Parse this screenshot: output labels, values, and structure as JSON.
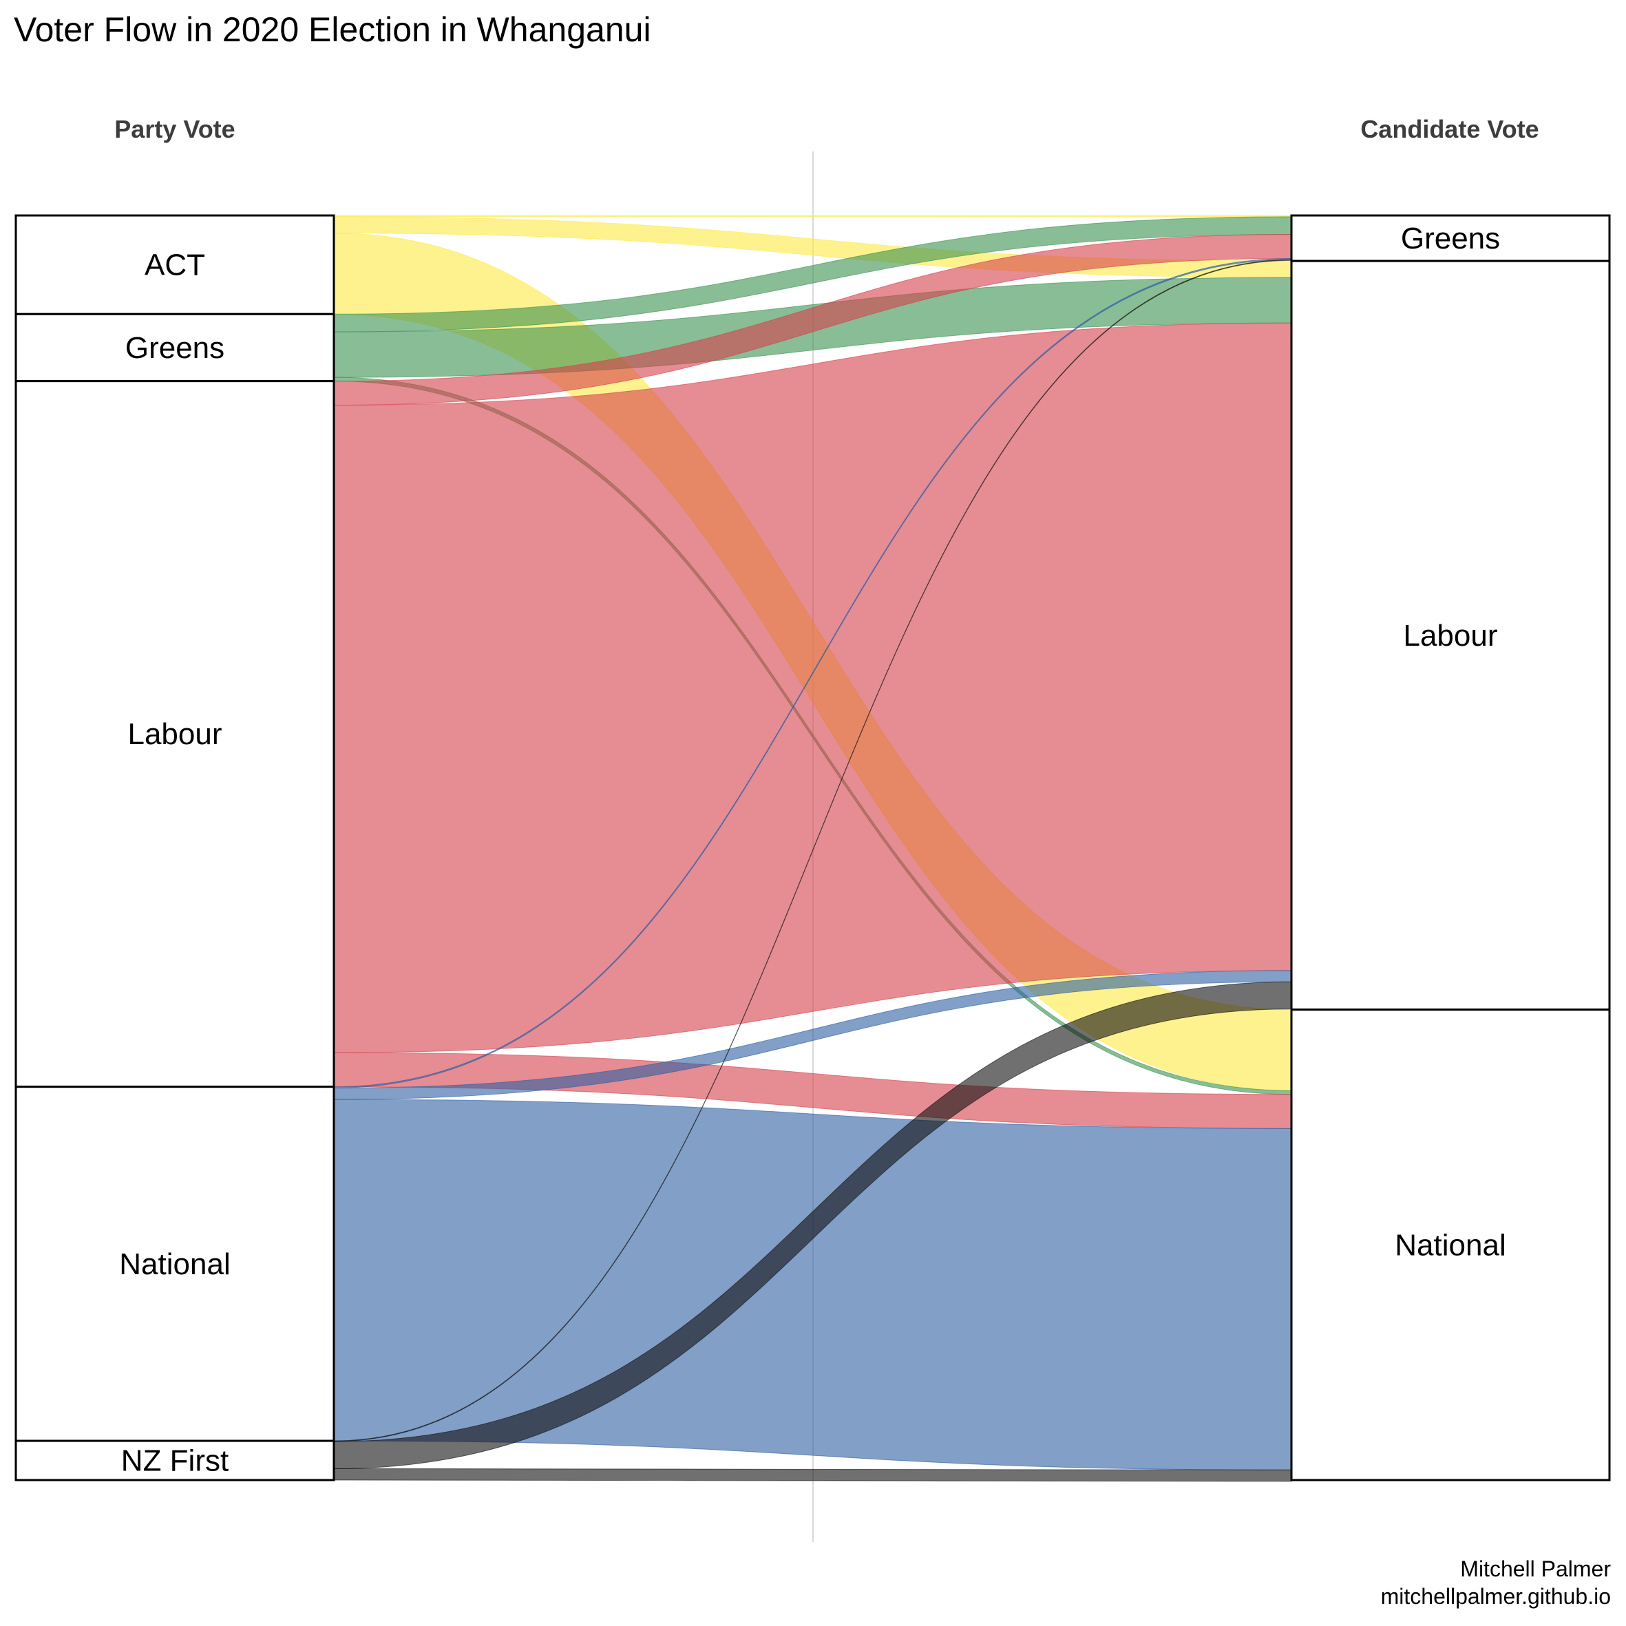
{
  "title": "Voter Flow in 2020 Election in Whanganui",
  "left_header": "Party Vote",
  "right_header": "Candidate Vote",
  "credit_name": "Mitchell Palmer",
  "credit_url": "mitchellpalmer.github.io",
  "colors": {
    "ACT": "#fdea45",
    "Greens": "#3b9150",
    "Labour": "#d6404b",
    "National": "#2d5fa1",
    "NZ First": "#111111",
    "outline": "#000000",
    "center_line": "#d9d9d9"
  },
  "chart_data": {
    "type": "alluvial",
    "title": "Voter Flow in 2020 Election in Whanganui",
    "axes": [
      "Party Vote",
      "Candidate Vote"
    ],
    "unit": "share of voters (%)",
    "left_nodes": [
      {
        "name": "ACT",
        "share": 7.8
      },
      {
        "name": "Greens",
        "share": 5.3
      },
      {
        "name": "Labour",
        "share": 55.8
      },
      {
        "name": "National",
        "share": 28.0
      },
      {
        "name": "NZ First",
        "share": 3.1
      }
    ],
    "right_nodes": [
      {
        "name": "Greens",
        "share": 3.6
      },
      {
        "name": "Labour",
        "share": 59.2
      },
      {
        "name": "National",
        "share": 37.2
      }
    ],
    "flows": [
      {
        "from": "ACT",
        "to": "Greens",
        "value": 0.1
      },
      {
        "from": "ACT",
        "to": "Labour",
        "value": 1.3
      },
      {
        "from": "ACT",
        "to": "National",
        "value": 6.4
      },
      {
        "from": "Greens",
        "to": "Greens",
        "value": 1.4
      },
      {
        "from": "Greens",
        "to": "Labour",
        "value": 3.6
      },
      {
        "from": "Greens",
        "to": "National",
        "value": 0.3
      },
      {
        "from": "Labour",
        "to": "Greens",
        "value": 1.9
      },
      {
        "from": "Labour",
        "to": "Labour",
        "value": 51.2
      },
      {
        "from": "Labour",
        "to": "National",
        "value": 2.7
      },
      {
        "from": "National",
        "to": "Greens",
        "value": 0.1
      },
      {
        "from": "National",
        "to": "Labour",
        "value": 0.9
      },
      {
        "from": "National",
        "to": "National",
        "value": 27.0
      },
      {
        "from": "NZ First",
        "to": "Greens",
        "value": 0.05
      },
      {
        "from": "NZ First",
        "to": "Labour",
        "value": 2.15
      },
      {
        "from": "NZ First",
        "to": "National",
        "value": 0.9
      }
    ]
  }
}
